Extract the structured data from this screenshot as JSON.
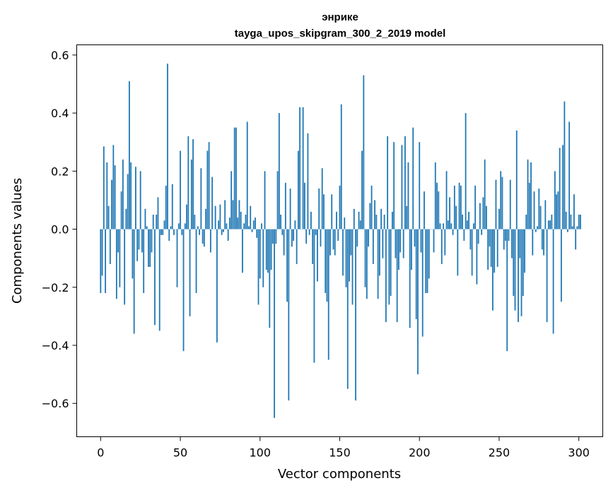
{
  "chart_data": {
    "type": "bar",
    "title_line1": "энрике",
    "title_line2": "tayga_upos_skipgram_300_2_2019 model",
    "xlabel": "Vector components",
    "ylabel": "Components values",
    "xlim": [
      -15,
      315
    ],
    "ylim": [
      -0.715,
      0.635
    ],
    "xticks": [
      0,
      50,
      100,
      150,
      200,
      250,
      300
    ],
    "xtick_labels": [
      "0",
      "50",
      "100",
      "150",
      "200",
      "250",
      "300"
    ],
    "yticks": [
      -0.6,
      -0.4,
      -0.2,
      0.0,
      0.2,
      0.4,
      0.6
    ],
    "ytick_labels": [
      "−0.6",
      "−0.4",
      "−0.2",
      "0.0",
      "0.2",
      "0.4",
      "0.6"
    ],
    "bar_color": "#1f77b4",
    "grid": false,
    "values": [
      -0.22,
      -0.16,
      0.285,
      -0.22,
      0.23,
      0.08,
      -0.12,
      0.17,
      0.29,
      0.22,
      -0.24,
      -0.08,
      -0.2,
      0.13,
      0.24,
      -0.26,
      0.07,
      0.19,
      0.51,
      0.23,
      -0.17,
      -0.36,
      0.215,
      -0.11,
      -0.07,
      0.2,
      -0.08,
      -0.22,
      0.07,
      0.01,
      -0.13,
      -0.13,
      -0.08,
      0.05,
      -0.33,
      0.05,
      0.11,
      -0.35,
      -0.02,
      -0.02,
      0.03,
      0.15,
      0.57,
      -0.04,
      0.01,
      0.155,
      -0.02,
      0.0,
      -0.2,
      0.02,
      0.27,
      -0.02,
      -0.42,
      0.02,
      0.085,
      0.32,
      -0.3,
      0.24,
      0.31,
      0.05,
      -0.22,
      0.01,
      -0.02,
      0.21,
      -0.05,
      -0.06,
      0.07,
      0.27,
      0.3,
      -0.08,
      0.18,
      0.0,
      0.08,
      -0.39,
      0.03,
      0.085,
      -0.02,
      -0.01,
      0.1,
      0.02,
      -0.04,
      0.04,
      0.2,
      0.1,
      0.35,
      0.35,
      0.04,
      0.1,
      0.06,
      -0.15,
      0.02,
      0.05,
      0.37,
      0.01,
      0.08,
      -0.01,
      0.03,
      0.04,
      -0.03,
      -0.26,
      -0.17,
      0.02,
      -0.2,
      0.2,
      -0.14,
      -0.15,
      -0.34,
      -0.14,
      -0.05,
      -0.65,
      -0.05,
      0.2,
      0.4,
      0.05,
      -0.02,
      -0.09,
      0.16,
      -0.25,
      -0.59,
      0.14,
      -0.06,
      -0.04,
      0.03,
      -0.12,
      0.27,
      0.42,
      0.0,
      0.42,
      0.16,
      -0.05,
      0.33,
      -0.02,
      0.06,
      -0.12,
      -0.46,
      -0.02,
      -0.18,
      0.14,
      -0.06,
      0.21,
      0.12,
      -0.22,
      -0.25,
      -0.45,
      -0.09,
      0.12,
      -0.07,
      -0.09,
      0.06,
      -0.04,
      0.15,
      0.43,
      -0.16,
      0.04,
      -0.2,
      -0.55,
      -0.18,
      -0.09,
      -0.26,
      0.07,
      -0.59,
      -0.06,
      0.06,
      0.03,
      0.27,
      0.53,
      -0.2,
      -0.24,
      -0.06,
      0.09,
      0.15,
      -0.12,
      0.1,
      0.05,
      -0.24,
      -0.16,
      0.07,
      -0.1,
      0.05,
      -0.32,
      0.32,
      -0.26,
      -0.23,
      0.06,
      0.3,
      -0.1,
      -0.32,
      -0.14,
      -0.08,
      0.29,
      -0.1,
      0.32,
      0.08,
      0.23,
      -0.34,
      -0.14,
      0.35,
      -0.06,
      -0.31,
      -0.5,
      0.3,
      -0.08,
      -0.37,
      0.13,
      -0.22,
      -0.22,
      -0.17,
      0.0,
      0.0,
      -0.08,
      0.23,
      0.16,
      0.13,
      0.02,
      -0.12,
      0.02,
      -0.09,
      0.2,
      0.03,
      0.11,
      0.02,
      -0.02,
      0.15,
      0.08,
      -0.16,
      0.16,
      0.15,
      0.05,
      -0.04,
      0.4,
      0.03,
      0.06,
      -0.07,
      -0.16,
      0.02,
      0.15,
      -0.19,
      -0.05,
      0.09,
      -0.02,
      0.11,
      0.24,
      0.08,
      -0.14,
      -0.06,
      -0.13,
      -0.28,
      -0.15,
      0.17,
      -0.13,
      0.07,
      0.2,
      0.18,
      -0.07,
      -0.04,
      -0.42,
      -0.04,
      0.17,
      -0.1,
      -0.23,
      -0.28,
      0.34,
      -0.32,
      -0.1,
      -0.3,
      -0.23,
      -0.15,
      0.05,
      0.24,
      0.16,
      0.23,
      -0.09,
      0.13,
      -0.01,
      0.01,
      0.14,
      0.08,
      -0.07,
      -0.09,
      0.1,
      -0.32,
      0.03,
      0.03,
      0.05,
      -0.36,
      0.2,
      0.12,
      0.13,
      0.28,
      -0.25,
      0.29,
      0.44,
      0.06,
      -0.01,
      0.37,
      0.05,
      0.01,
      0.12,
      -0.07,
      0.01,
      0.05,
      0.05
    ]
  }
}
